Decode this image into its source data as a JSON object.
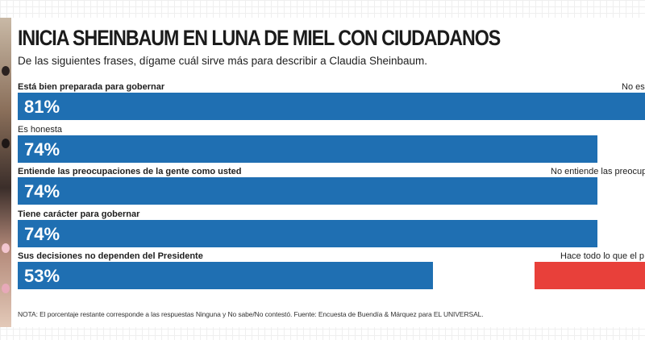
{
  "title": "INICIA SHEINBAUM EN LUNA DE MIEL CON CIUDADANOS",
  "subtitle": "De las siguientes frases, dígame cuál sirve más para describir a Claudia Sheinbaum.",
  "note": "NOTA: El porcentaje restante corresponde a las respuestas Ninguna y No sabe/No contestó. Fuente: Encuesta de Buendía & Márquez para EL UNIVERSAL.",
  "colors": {
    "bar": "#1f6fb2",
    "negative_bar": "#e8403a",
    "text": "#1e1e1e"
  },
  "chart_data": {
    "type": "bar",
    "orientation": "horizontal",
    "title": "INICIA SHEINBAUM EN LUNA DE MIEL CON CIUDADANOS",
    "subtitle": "De las siguientes frases, dígame cuál sirve más para describir a Claudia Sheinbaum.",
    "xlim": [
      0,
      100
    ],
    "categories": [
      "Está bien preparada para gobernar",
      "Es honesta",
      "Entiende las preocupaciones de la gente como usted",
      "Tiene carácter para gobernar",
      "Sus decisiones no dependen del Presidente"
    ],
    "values": [
      81,
      74,
      74,
      74,
      53
    ],
    "value_labels": [
      "81%",
      "74%",
      "74%",
      "74%",
      "53%"
    ],
    "opposite_labels": [
      "No es",
      "",
      "No entiende las preocup",
      "",
      "Hace todo lo que el p"
    ],
    "opposite_bar_visible": [
      false,
      false,
      false,
      false,
      true
    ]
  }
}
